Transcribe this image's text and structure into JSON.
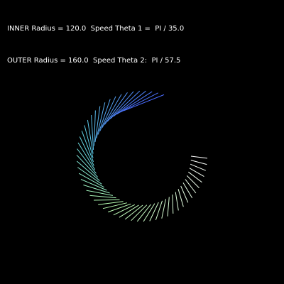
{
  "hud": {
    "line1": "INNER Radius = 120.0  Speed Theta 1 =  PI / 35.0",
    "line2": "OUTER Radius = 160.0  Speed Theta 2:  PI / 57.5"
  },
  "sketch": {
    "inner_radius": 120.0,
    "outer_radius": 160.0,
    "speed_theta_1_divisor": 35.0,
    "speed_theta_2_divisor": 57.5,
    "line_count": 54,
    "color_start": "#4a6cff",
    "color_mid": "#5fd3e6",
    "color_green": "#b8ffb0",
    "color_end": "#ffffff",
    "background": "#000000"
  }
}
